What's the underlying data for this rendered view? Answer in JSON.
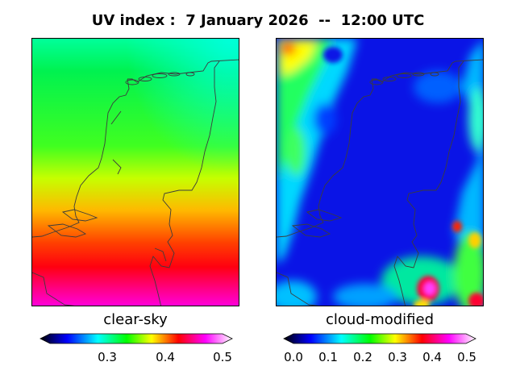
{
  "header": {
    "title": "UV index :  7 January 2026  --  12:00 UTC"
  },
  "panels": [
    {
      "label": "clear-sky",
      "colorbar_ticks": [
        "0.3",
        "0.4",
        "0.5"
      ]
    },
    {
      "label": "cloud-modified",
      "colorbar_ticks": [
        "0.0",
        "0.1",
        "0.2",
        "0.3",
        "0.4",
        "0.5"
      ]
    }
  ],
  "colormap": [
    "#000000",
    "#0000ff",
    "#00ffff",
    "#00ff00",
    "#ffff00",
    "#ff0000",
    "#ff00ff",
    "#ffffff"
  ]
}
